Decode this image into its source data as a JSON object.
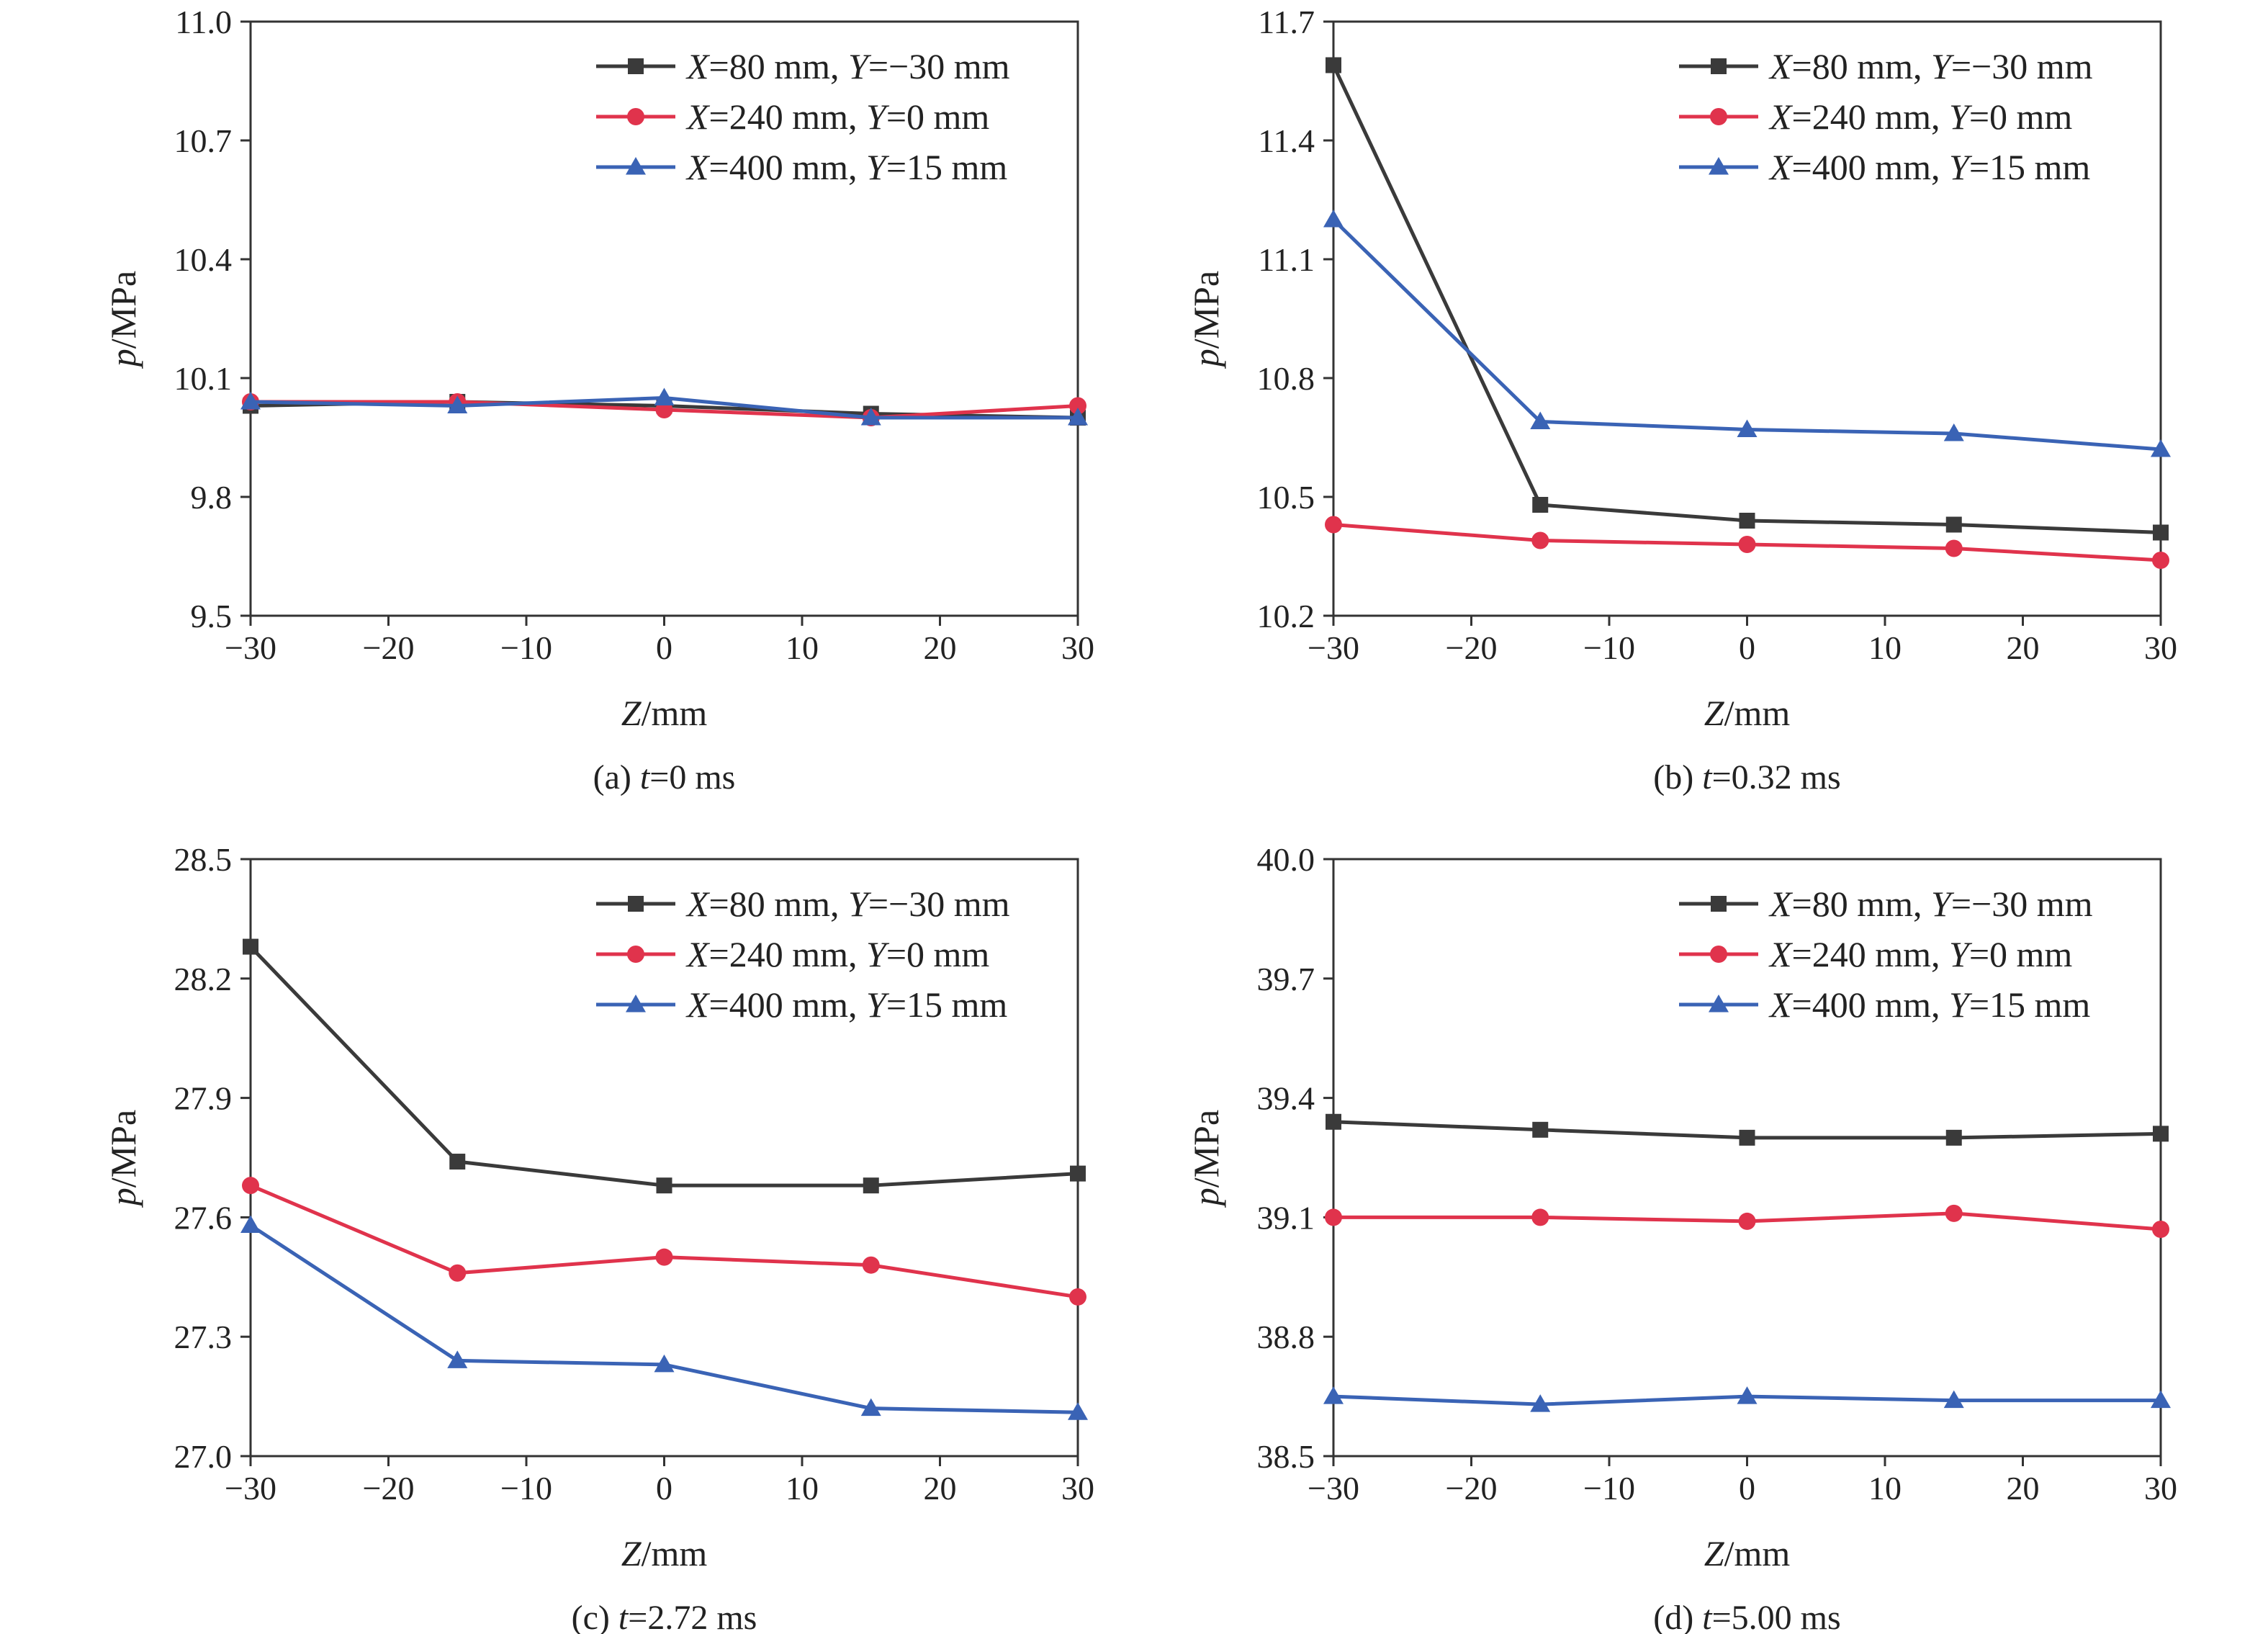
{
  "chart_data": [
    {
      "type": "line",
      "caption_prefix": "(a) ",
      "caption_var": "t",
      "caption_rest": "=0 ms",
      "xlabel_var": "Z",
      "xlabel_unit": "/mm",
      "ylabel_var": "p",
      "ylabel_unit": "/MPa",
      "xlim": [
        -30,
        30
      ],
      "ylim": [
        9.5,
        11.0
      ],
      "xticks": [
        "−30",
        "−20",
        "−10",
        "0",
        "10",
        "20",
        "30"
      ],
      "yticks": [
        "9.5",
        "9.8",
        "10.1",
        "10.4",
        "10.7",
        "11.0"
      ],
      "x": [
        -30,
        -15,
        0,
        15,
        30
      ],
      "legend_position": "top-right",
      "series": [
        {
          "color": "#3a3a3a",
          "marker": "square",
          "values": [
            10.03,
            10.04,
            10.03,
            10.01,
            10.0
          ]
        },
        {
          "color": "#e0334c",
          "marker": "circle",
          "values": [
            10.04,
            10.04,
            10.02,
            10.0,
            10.03
          ]
        },
        {
          "color": "#3a63b5",
          "marker": "triangle",
          "values": [
            10.04,
            10.03,
            10.05,
            10.0,
            10.0
          ]
        }
      ]
    },
    {
      "type": "line",
      "caption_prefix": "(b) ",
      "caption_var": "t",
      "caption_rest": "=0.32 ms",
      "xlabel_var": "Z",
      "xlabel_unit": "/mm",
      "ylabel_var": "p",
      "ylabel_unit": "/MPa",
      "xlim": [
        -30,
        30
      ],
      "ylim": [
        10.2,
        11.7
      ],
      "xticks": [
        "−30",
        "−20",
        "−10",
        "0",
        "10",
        "20",
        "30"
      ],
      "yticks": [
        "10.2",
        "10.5",
        "10.8",
        "11.1",
        "11.4",
        "11.7"
      ],
      "x": [
        -30,
        -15,
        0,
        15,
        30
      ],
      "legend_position": "top-right",
      "series": [
        {
          "color": "#3a3a3a",
          "marker": "square",
          "values": [
            11.59,
            10.48,
            10.44,
            10.43,
            10.41
          ]
        },
        {
          "color": "#e0334c",
          "marker": "circle",
          "values": [
            10.43,
            10.39,
            10.38,
            10.37,
            10.34
          ]
        },
        {
          "color": "#3a63b5",
          "marker": "triangle",
          "values": [
            11.2,
            10.69,
            10.67,
            10.66,
            10.62
          ]
        }
      ]
    },
    {
      "type": "line",
      "caption_prefix": "(c) ",
      "caption_var": "t",
      "caption_rest": "=2.72 ms",
      "xlabel_var": "Z",
      "xlabel_unit": "/mm",
      "ylabel_var": "p",
      "ylabel_unit": "/MPa",
      "xlim": [
        -30,
        30
      ],
      "ylim": [
        27.0,
        28.5
      ],
      "xticks": [
        "−30",
        "−20",
        "−10",
        "0",
        "10",
        "20",
        "30"
      ],
      "yticks": [
        "27.0",
        "27.3",
        "27.6",
        "27.9",
        "28.2",
        "28.5"
      ],
      "x": [
        -30,
        -15,
        0,
        15,
        30
      ],
      "legend_position": "top-right",
      "series": [
        {
          "color": "#3a3a3a",
          "marker": "square",
          "values": [
            28.28,
            27.74,
            27.68,
            27.68,
            27.71
          ]
        },
        {
          "color": "#e0334c",
          "marker": "circle",
          "values": [
            27.68,
            27.46,
            27.5,
            27.48,
            27.4
          ]
        },
        {
          "color": "#3a63b5",
          "marker": "triangle",
          "values": [
            27.58,
            27.24,
            27.23,
            27.12,
            27.11
          ]
        }
      ]
    },
    {
      "type": "line",
      "caption_prefix": "(d) ",
      "caption_var": "t",
      "caption_rest": "=5.00 ms",
      "xlabel_var": "Z",
      "xlabel_unit": "/mm",
      "ylabel_var": "p",
      "ylabel_unit": "/MPa",
      "xlim": [
        -30,
        30
      ],
      "ylim": [
        38.5,
        40.0
      ],
      "xticks": [
        "−30",
        "−20",
        "−10",
        "0",
        "10",
        "20",
        "30"
      ],
      "yticks": [
        "38.5",
        "38.8",
        "39.1",
        "39.4",
        "39.7",
        "40.0"
      ],
      "x": [
        -30,
        -15,
        0,
        15,
        30
      ],
      "legend_position": "top-right",
      "series": [
        {
          "color": "#3a3a3a",
          "marker": "square",
          "values": [
            39.34,
            39.32,
            39.3,
            39.3,
            39.31
          ]
        },
        {
          "color": "#e0334c",
          "marker": "circle",
          "values": [
            39.1,
            39.1,
            39.09,
            39.11,
            39.07
          ]
        },
        {
          "color": "#3a63b5",
          "marker": "triangle",
          "values": [
            38.65,
            38.63,
            38.65,
            38.64,
            38.64
          ]
        }
      ]
    }
  ],
  "legend_entries": [
    {
      "x_var": "X",
      "x_rest": "=80 mm, ",
      "y_var": "Y",
      "y_rest": "=−30 mm"
    },
    {
      "x_var": "X",
      "x_rest": "=240 mm, ",
      "y_var": "Y",
      "y_rest": "=0 mm"
    },
    {
      "x_var": "X",
      "x_rest": "=400 mm, ",
      "y_var": "Y",
      "y_rest": "=15 mm"
    }
  ]
}
